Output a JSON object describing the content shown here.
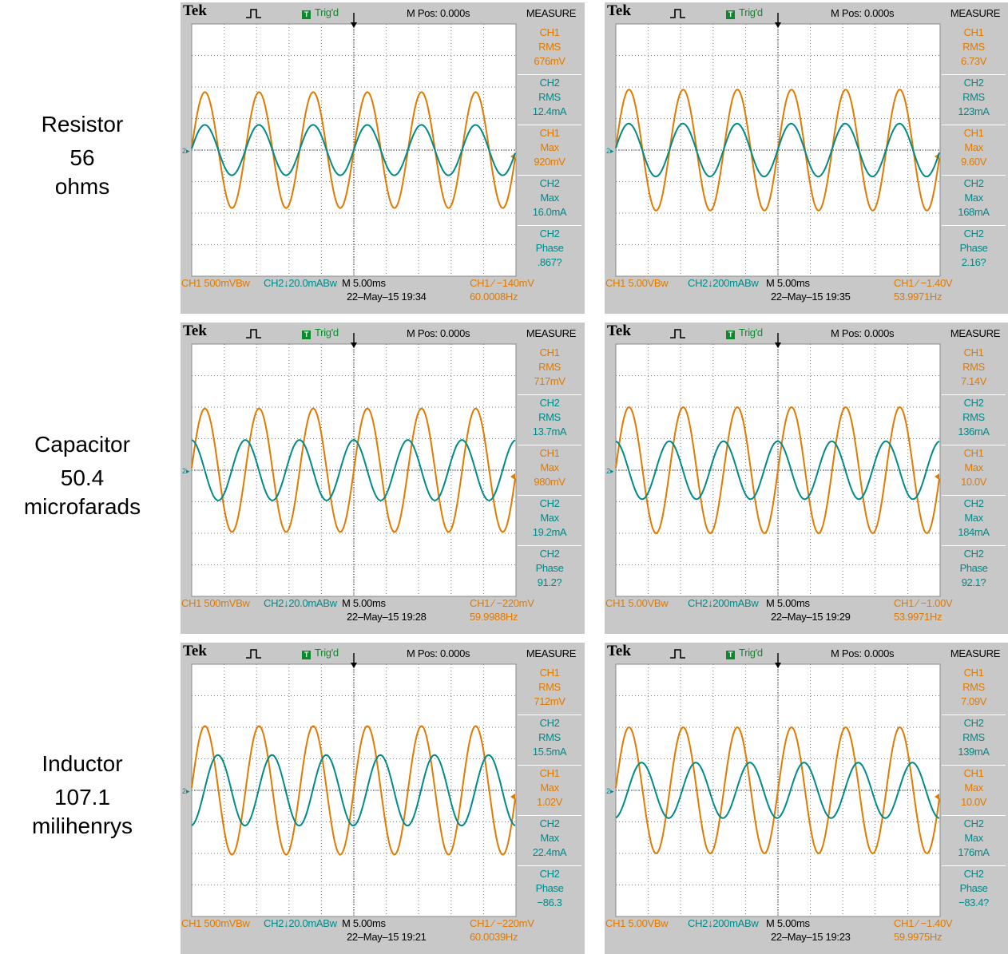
{
  "rows": [
    {
      "label_1": "Resistor",
      "label_2": "56",
      "label_3": "ohms"
    },
    {
      "label_1": "Capacitor",
      "label_2": "50.4",
      "label_3": "microfarads"
    },
    {
      "label_1": "Inductor",
      "label_2": "107.1",
      "label_3": "milihenrys"
    }
  ],
  "colors": {
    "ch1": "#e07a00",
    "ch2": "#008a8a",
    "bezel": "#c8c8c8",
    "grid": "#7a7a7a"
  },
  "chart_data": [
    {
      "type": "line",
      "row": 0,
      "col": 0,
      "header": {
        "brand": "Tek",
        "trig": "Trig'd",
        "mpos": "M Pos: 0.000s",
        "measure": "MEASURE"
      },
      "measurements": [
        {
          "ch": "CH1",
          "type": "RMS",
          "value": "676mV",
          "color": "ch1"
        },
        {
          "ch": "CH2",
          "type": "RMS",
          "value": "12.4mA",
          "color": "ch2"
        },
        {
          "ch": "CH1",
          "type": "Max",
          "value": "920mV",
          "color": "ch1"
        },
        {
          "ch": "CH2",
          "type": "Max",
          "value": "16.0mA",
          "color": "ch2"
        },
        {
          "ch": "CH2",
          "type": "Phase",
          "value": ".867?",
          "color": "ch2"
        }
      ],
      "footer": {
        "ch1_scale": "CH1  500mVBw",
        "ch2_scale": "CH2↓20.0mABw",
        "timebase": "M 5.00ms",
        "trig_level": "CH1 ∕ −140mV",
        "datetime": "22–May–15 19:34",
        "freq": "60.0008Hz"
      },
      "series": [
        {
          "channel": "ch1",
          "amplitude_div": 1.84,
          "phase_deg": 0
        },
        {
          "channel": "ch2",
          "amplitude_div": 0.8,
          "phase_deg": 0.867
        }
      ],
      "period_div": 1.67,
      "xlim_div": [
        0,
        10
      ],
      "ylim_div": [
        -4,
        4
      ]
    },
    {
      "type": "line",
      "row": 0,
      "col": 1,
      "header": {
        "brand": "Tek",
        "trig": "Trig'd",
        "mpos": "M Pos: 0.000s",
        "measure": "MEASURE"
      },
      "measurements": [
        {
          "ch": "CH1",
          "type": "RMS",
          "value": "6.73V",
          "color": "ch1"
        },
        {
          "ch": "CH2",
          "type": "RMS",
          "value": "123mA",
          "color": "ch2"
        },
        {
          "ch": "CH1",
          "type": "Max",
          "value": "9.60V",
          "color": "ch1"
        },
        {
          "ch": "CH2",
          "type": "Max",
          "value": "168mA",
          "color": "ch2"
        },
        {
          "ch": "CH2",
          "type": "Phase",
          "value": "2.16?",
          "color": "ch2"
        }
      ],
      "footer": {
        "ch1_scale": "CH1  5.00VBw",
        "ch2_scale": "CH2↓200mABw",
        "timebase": "M 5.00ms",
        "trig_level": "CH1 ∕ −1.40V",
        "datetime": "22–May–15 19:35",
        "freq": "53.9971Hz"
      },
      "series": [
        {
          "channel": "ch1",
          "amplitude_div": 1.92,
          "phase_deg": 0
        },
        {
          "channel": "ch2",
          "amplitude_div": 0.84,
          "phase_deg": 2.16
        }
      ],
      "period_div": 1.67,
      "xlim_div": [
        0,
        10
      ],
      "ylim_div": [
        -4,
        4
      ]
    },
    {
      "type": "line",
      "row": 1,
      "col": 0,
      "header": {
        "brand": "Tek",
        "trig": "Trig'd",
        "mpos": "M Pos: 0.000s",
        "measure": "MEASURE"
      },
      "measurements": [
        {
          "ch": "CH1",
          "type": "RMS",
          "value": "717mV",
          "color": "ch1"
        },
        {
          "ch": "CH2",
          "type": "RMS",
          "value": "13.7mA",
          "color": "ch2"
        },
        {
          "ch": "CH1",
          "type": "Max",
          "value": "980mV",
          "color": "ch1"
        },
        {
          "ch": "CH2",
          "type": "Max",
          "value": "19.2mA",
          "color": "ch2"
        },
        {
          "ch": "CH2",
          "type": "Phase",
          "value": "91.2?",
          "color": "ch2"
        }
      ],
      "footer": {
        "ch1_scale": "CH1  500mVBw",
        "ch2_scale": "CH2↓20.0mABw",
        "timebase": "M 5.00ms",
        "trig_level": "CH1 ∕ −220mV",
        "datetime": "22–May–15 19:28",
        "freq": "59.9988Hz"
      },
      "series": [
        {
          "channel": "ch1",
          "amplitude_div": 1.96,
          "phase_deg": 0
        },
        {
          "channel": "ch2",
          "amplitude_div": 0.96,
          "phase_deg": 91.2
        }
      ],
      "period_div": 1.67,
      "xlim_div": [
        0,
        10
      ],
      "ylim_div": [
        -4,
        4
      ]
    },
    {
      "type": "line",
      "row": 1,
      "col": 1,
      "header": {
        "brand": "Tek",
        "trig": "Trig'd",
        "mpos": "M Pos: 0.000s",
        "measure": "MEASURE"
      },
      "measurements": [
        {
          "ch": "CH1",
          "type": "RMS",
          "value": "7.14V",
          "color": "ch1"
        },
        {
          "ch": "CH2",
          "type": "RMS",
          "value": "136mA",
          "color": "ch2"
        },
        {
          "ch": "CH1",
          "type": "Max",
          "value": "10.0V",
          "color": "ch1"
        },
        {
          "ch": "CH2",
          "type": "Max",
          "value": "184mA",
          "color": "ch2"
        },
        {
          "ch": "CH2",
          "type": "Phase",
          "value": "92.1?",
          "color": "ch2"
        }
      ],
      "footer": {
        "ch1_scale": "CH1  5.00VBw",
        "ch2_scale": "CH2↓200mABw",
        "timebase": "M 5.00ms",
        "trig_level": "CH1 ∕ −1.00V",
        "datetime": "22–May–15 19:29",
        "freq": "53.9971Hz"
      },
      "series": [
        {
          "channel": "ch1",
          "amplitude_div": 2.0,
          "phase_deg": 0
        },
        {
          "channel": "ch2",
          "amplitude_div": 0.92,
          "phase_deg": 92.1
        }
      ],
      "period_div": 1.67,
      "xlim_div": [
        0,
        10
      ],
      "ylim_div": [
        -4,
        4
      ]
    },
    {
      "type": "line",
      "row": 2,
      "col": 0,
      "header": {
        "brand": "Tek",
        "trig": "Trig'd",
        "mpos": "M Pos: 0.000s",
        "measure": "MEASURE"
      },
      "measurements": [
        {
          "ch": "CH1",
          "type": "RMS",
          "value": "712mV",
          "color": "ch1"
        },
        {
          "ch": "CH2",
          "type": "RMS",
          "value": "15.5mA",
          "color": "ch2"
        },
        {
          "ch": "CH1",
          "type": "Max",
          "value": "1.02V",
          "color": "ch1"
        },
        {
          "ch": "CH2",
          "type": "Max",
          "value": "22.4mA",
          "color": "ch2"
        },
        {
          "ch": "CH2",
          "type": "Phase",
          "value": "−86.3",
          "color": "ch2"
        }
      ],
      "footer": {
        "ch1_scale": "CH1  500mVBw",
        "ch2_scale": "CH2↓20.0mABw",
        "timebase": "M 5.00ms",
        "trig_level": "CH1 ∕ −220mV",
        "datetime": "22–May–15 19:21",
        "freq": "60.0039Hz"
      },
      "series": [
        {
          "channel": "ch1",
          "amplitude_div": 2.04,
          "phase_deg": 0
        },
        {
          "channel": "ch2",
          "amplitude_div": 1.12,
          "phase_deg": -86.3
        }
      ],
      "period_div": 1.67,
      "xlim_div": [
        0,
        10
      ],
      "ylim_div": [
        -4,
        4
      ]
    },
    {
      "type": "line",
      "row": 2,
      "col": 1,
      "header": {
        "brand": "Tek",
        "trig": "Trig'd",
        "mpos": "M Pos: 0.000s",
        "measure": "MEASURE"
      },
      "measurements": [
        {
          "ch": "CH1",
          "type": "RMS",
          "value": "7.09V",
          "color": "ch1"
        },
        {
          "ch": "CH2",
          "type": "RMS",
          "value": "139mA",
          "color": "ch2"
        },
        {
          "ch": "CH1",
          "type": "Max",
          "value": "10.0V",
          "color": "ch1"
        },
        {
          "ch": "CH2",
          "type": "Max",
          "value": "176mA",
          "color": "ch2"
        },
        {
          "ch": "CH2",
          "type": "Phase",
          "value": "−83.4?",
          "color": "ch2"
        }
      ],
      "footer": {
        "ch1_scale": "CH1  5.00VBw",
        "ch2_scale": "CH2↓200mABw",
        "timebase": "M 5.00ms",
        "trig_level": "CH1 ∕ −1.40V",
        "datetime": "22–May–15 19:23",
        "freq": "59.9975Hz"
      },
      "series": [
        {
          "channel": "ch1",
          "amplitude_div": 2.0,
          "phase_deg": 0
        },
        {
          "channel": "ch2",
          "amplitude_div": 0.88,
          "phase_deg": -83.4
        }
      ],
      "period_div": 1.67,
      "xlim_div": [
        0,
        10
      ],
      "ylim_div": [
        -4,
        4
      ]
    }
  ]
}
